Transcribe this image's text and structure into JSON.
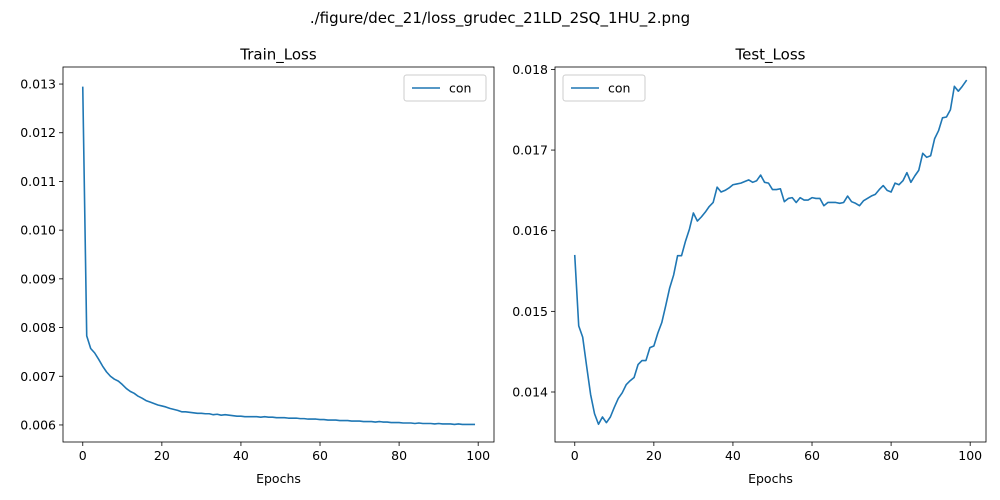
{
  "figure": {
    "suptitle": "./figure/dec_21/loss_grudec_21LD_2SQ_1HU_2.png"
  },
  "line_color": "#1f77b4",
  "chart_data": [
    {
      "type": "line",
      "title": "Train_Loss",
      "xlabel": "Epochs",
      "ylabel": "",
      "xlim": [
        -5,
        104
      ],
      "ylim": [
        0.00565,
        0.01335
      ],
      "xticks": [
        0,
        20,
        40,
        60,
        80,
        100
      ],
      "xtick_labels": [
        "0",
        "20",
        "40",
        "60",
        "80",
        "100"
      ],
      "yticks": [
        0.006,
        0.007,
        0.008,
        0.009,
        0.01,
        0.011,
        0.012,
        0.013
      ],
      "ytick_labels": [
        "0.006",
        "0.007",
        "0.008",
        "0.009",
        "0.010",
        "0.011",
        "0.012",
        "0.013"
      ],
      "legend": {
        "placement": "upper right"
      },
      "grid": false,
      "series": [
        {
          "name": "con",
          "x": [
            0,
            1,
            2,
            3,
            4,
            5,
            6,
            7,
            8,
            9,
            10,
            11,
            12,
            13,
            14,
            15,
            16,
            17,
            18,
            19,
            20,
            21,
            22,
            23,
            24,
            25,
            26,
            27,
            28,
            29,
            30,
            31,
            32,
            33,
            34,
            35,
            36,
            37,
            38,
            39,
            40,
            41,
            42,
            43,
            44,
            45,
            46,
            47,
            48,
            49,
            50,
            51,
            52,
            53,
            54,
            55,
            56,
            57,
            58,
            59,
            60,
            61,
            62,
            63,
            64,
            65,
            66,
            67,
            68,
            69,
            70,
            71,
            72,
            73,
            74,
            75,
            76,
            77,
            78,
            79,
            80,
            81,
            82,
            83,
            84,
            85,
            86,
            87,
            88,
            89,
            90,
            91,
            92,
            93,
            94,
            95,
            96,
            97,
            98,
            99
          ],
          "y": [
            0.01293,
            0.00783,
            0.00757,
            0.00748,
            0.00735,
            0.00721,
            0.00709,
            0.007,
            0.00694,
            0.0069,
            0.00683,
            0.00675,
            0.00669,
            0.00665,
            0.00659,
            0.00655,
            0.0065,
            0.00647,
            0.00644,
            0.00641,
            0.00639,
            0.00637,
            0.00634,
            0.00632,
            0.0063,
            0.00627,
            0.00627,
            0.00626,
            0.00625,
            0.00624,
            0.00624,
            0.00623,
            0.00623,
            0.00621,
            0.00622,
            0.0062,
            0.00621,
            0.0062,
            0.00619,
            0.00618,
            0.00618,
            0.00617,
            0.00617,
            0.00617,
            0.00617,
            0.00616,
            0.00617,
            0.00616,
            0.00616,
            0.00615,
            0.00615,
            0.00615,
            0.00614,
            0.00614,
            0.00614,
            0.00613,
            0.00613,
            0.00612,
            0.00612,
            0.00612,
            0.00611,
            0.00611,
            0.0061,
            0.0061,
            0.0061,
            0.00609,
            0.00609,
            0.00609,
            0.00608,
            0.00608,
            0.00608,
            0.00607,
            0.00607,
            0.00607,
            0.00606,
            0.00607,
            0.00606,
            0.00606,
            0.00605,
            0.00605,
            0.00605,
            0.00604,
            0.00604,
            0.00604,
            0.00603,
            0.00604,
            0.00603,
            0.00603,
            0.00603,
            0.00602,
            0.00603,
            0.00602,
            0.00602,
            0.00602,
            0.00601,
            0.00602,
            0.00601,
            0.00601,
            0.00601,
            0.00601
          ]
        }
      ]
    },
    {
      "type": "line",
      "title": "Test_Loss",
      "xlabel": "Epochs",
      "ylabel": "",
      "xlim": [
        -5,
        104
      ],
      "ylim": [
        0.01338,
        0.01803
      ],
      "xticks": [
        0,
        20,
        40,
        60,
        80,
        100
      ],
      "xtick_labels": [
        "0",
        "20",
        "40",
        "60",
        "80",
        "100"
      ],
      "yticks": [
        0.014,
        0.015,
        0.016,
        0.017,
        0.018
      ],
      "ytick_labels": [
        "0.014",
        "0.015",
        "0.016",
        "0.017",
        "0.018"
      ],
      "legend": {
        "placement": "upper left"
      },
      "grid": false,
      "series": [
        {
          "name": "con",
          "x": [
            0,
            1,
            2,
            3,
            4,
            5,
            6,
            7,
            8,
            9,
            10,
            11,
            12,
            13,
            14,
            15,
            16,
            17,
            18,
            19,
            20,
            21,
            22,
            23,
            24,
            25,
            26,
            27,
            28,
            29,
            30,
            31,
            32,
            33,
            34,
            35,
            36,
            37,
            38,
            39,
            40,
            41,
            42,
            43,
            44,
            45,
            46,
            47,
            48,
            49,
            50,
            51,
            52,
            53,
            54,
            55,
            56,
            57,
            58,
            59,
            60,
            61,
            62,
            63,
            64,
            65,
            66,
            67,
            68,
            69,
            70,
            71,
            72,
            73,
            74,
            75,
            76,
            77,
            78,
            79,
            80,
            81,
            82,
            83,
            84,
            85,
            86,
            87,
            88,
            89,
            90,
            91,
            92,
            93,
            94,
            95,
            96,
            97,
            98,
            99
          ],
          "y": [
            0.01569,
            0.01482,
            0.01468,
            0.01432,
            0.01397,
            0.01373,
            0.0136,
            0.01369,
            0.01362,
            0.01369,
            0.01381,
            0.01392,
            0.01399,
            0.01409,
            0.01414,
            0.01418,
            0.01434,
            0.01439,
            0.01439,
            0.01455,
            0.01457,
            0.01473,
            0.01486,
            0.01507,
            0.01529,
            0.01545,
            0.01569,
            0.01569,
            0.01587,
            0.01602,
            0.01622,
            0.01612,
            0.01617,
            0.01623,
            0.0163,
            0.01635,
            0.01654,
            0.01648,
            0.0165,
            0.01653,
            0.01657,
            0.01658,
            0.01659,
            0.01661,
            0.01663,
            0.0166,
            0.01662,
            0.01669,
            0.0166,
            0.01659,
            0.01651,
            0.01651,
            0.01652,
            0.01636,
            0.0164,
            0.01641,
            0.01635,
            0.01641,
            0.01638,
            0.01638,
            0.01641,
            0.0164,
            0.0164,
            0.01631,
            0.01635,
            0.01635,
            0.01635,
            0.01634,
            0.01635,
            0.01643,
            0.01636,
            0.01634,
            0.01631,
            0.01637,
            0.0164,
            0.01643,
            0.01645,
            0.01651,
            0.01656,
            0.0165,
            0.01648,
            0.01659,
            0.01657,
            0.01662,
            0.01672,
            0.0166,
            0.01668,
            0.01675,
            0.01696,
            0.01691,
            0.01693,
            0.01714,
            0.01724,
            0.0174,
            0.01741,
            0.0175,
            0.01779,
            0.01773,
            0.01779,
            0.01786
          ]
        }
      ]
    }
  ]
}
